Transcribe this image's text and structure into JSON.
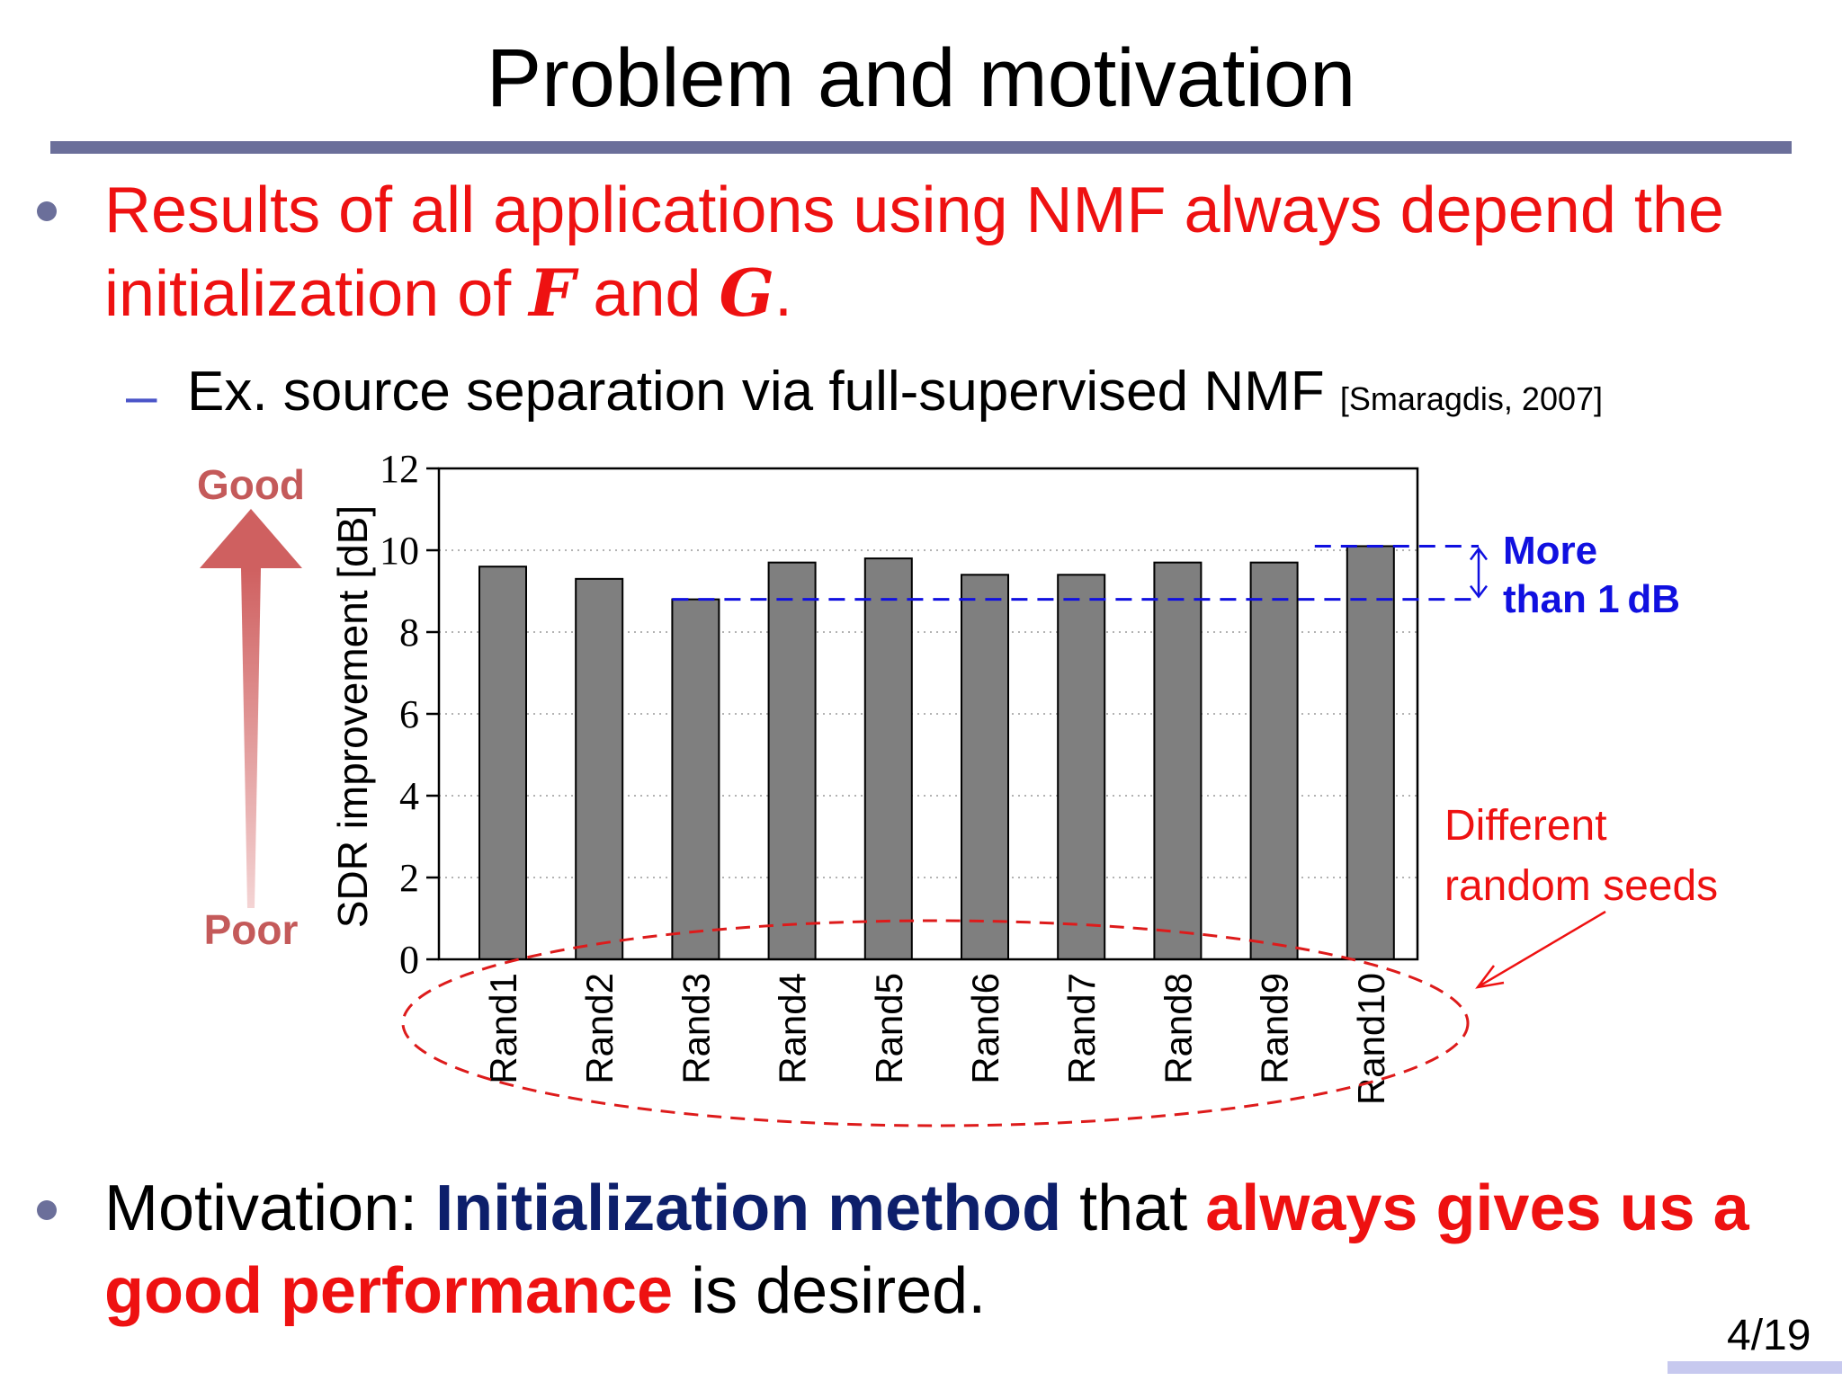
{
  "slide": {
    "title": "Problem and motivation",
    "bullet1": {
      "part1": "Results of all applications using NMF always depend the initialization of ",
      "var_f": "F",
      "part2": " and ",
      "var_g": "G",
      "part3": "."
    },
    "sub_bullet": {
      "dash": "–",
      "text": "Ex. source separation via full-supervised NMF ",
      "citation": "[Smaragdis, 2007]"
    },
    "bullet2": {
      "prefix": "Motivation: ",
      "highlight1": "Initialization method",
      "middle": " that ",
      "highlight2": "always gives us a good performance",
      "suffix": " is desired."
    },
    "page_number": "4/19"
  },
  "chart_data": {
    "type": "bar",
    "categories": [
      "Rand1",
      "Rand2",
      "Rand3",
      "Rand4",
      "Rand5",
      "Rand6",
      "Rand7",
      "Rand8",
      "Rand9",
      "Rand10"
    ],
    "values": [
      9.6,
      9.3,
      8.8,
      9.7,
      9.8,
      9.4,
      9.4,
      9.7,
      9.7,
      10.1
    ],
    "ylabel": "SDR improvement [dB]",
    "xlabel": "",
    "ylim": [
      0,
      12
    ],
    "yticks": [
      0,
      2,
      4,
      6,
      8,
      10,
      12
    ],
    "grid": "horizontal dotted",
    "reference_lines": {
      "min": 8.8,
      "max": 10.1
    },
    "annotations": {
      "good": "Good",
      "poor": "Poor",
      "diff_line1": "More",
      "diff_line2": "than 1 dB",
      "seeds_line1": "Different",
      "seeds_line2": "random seeds"
    },
    "colors": {
      "bar": "#7f7f7f",
      "reference_line": "#1010e0",
      "seeds_ellipse": "#dd1b1b",
      "quality_arrow": "#cf6060"
    }
  }
}
